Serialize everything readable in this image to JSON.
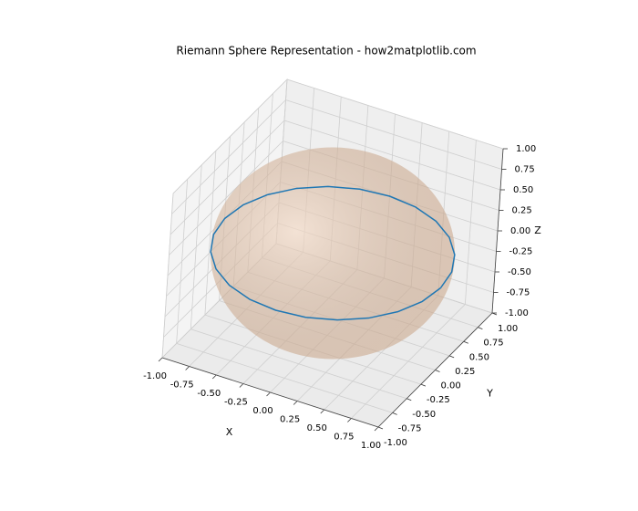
{
  "chart_data": {
    "type": "surface3d",
    "title": "Riemann Sphere Representation - how2matplotlib.com",
    "xlabel": "X",
    "ylabel": "Y",
    "zlabel": "Z",
    "xlim": [
      -1,
      1
    ],
    "ylim": [
      -1,
      1
    ],
    "zlim": [
      -1,
      1
    ],
    "xticks": [
      {
        "value": -1,
        "label": "-1.00"
      },
      {
        "value": -0.75,
        "label": "-0.75"
      },
      {
        "value": -0.5,
        "label": "-0.50"
      },
      {
        "value": -0.25,
        "label": "-0.25"
      },
      {
        "value": 0,
        "label": "0.00"
      },
      {
        "value": 0.25,
        "label": "0.25"
      },
      {
        "value": 0.5,
        "label": "0.50"
      },
      {
        "value": 0.75,
        "label": "0.75"
      },
      {
        "value": 1,
        "label": "1.00"
      }
    ],
    "yticks": [
      {
        "value": -1,
        "label": "-1.00"
      },
      {
        "value": -0.75,
        "label": "-0.75"
      },
      {
        "value": -0.5,
        "label": "-0.50"
      },
      {
        "value": -0.25,
        "label": "-0.25"
      },
      {
        "value": 0,
        "label": "0.00"
      },
      {
        "value": 0.25,
        "label": "0.25"
      },
      {
        "value": 0.5,
        "label": "0.50"
      },
      {
        "value": 0.75,
        "label": "0.75"
      },
      {
        "value": 1,
        "label": "1.00"
      }
    ],
    "zticks": [
      {
        "value": -1,
        "label": "-1.00"
      },
      {
        "value": -0.75,
        "label": "-0.75"
      },
      {
        "value": -0.5,
        "label": "-0.50"
      },
      {
        "value": -0.25,
        "label": "-0.25"
      },
      {
        "value": 0,
        "label": "0.00"
      },
      {
        "value": 0.25,
        "label": "0.25"
      },
      {
        "value": 0.5,
        "label": "0.50"
      },
      {
        "value": 0.75,
        "label": "0.75"
      },
      {
        "value": 1,
        "label": "1.00"
      }
    ],
    "grid": true,
    "surface": {
      "radius": 1,
      "color": "#eec4a4"
    },
    "curve": {
      "color": "#1f77b4",
      "x": [
        1,
        0.966,
        0.866,
        0.707,
        0.5,
        0.259,
        0,
        -0.259,
        -0.5,
        -0.707,
        -0.866,
        -0.966,
        -1,
        -0.966,
        -0.866,
        -0.707,
        -0.5,
        -0.259,
        0,
        0.259,
        0.5,
        0.707,
        0.866,
        0.966,
        1
      ],
      "y": [
        0,
        0.259,
        0.5,
        0.707,
        0.866,
        0.966,
        1,
        0.966,
        0.866,
        0.707,
        0.5,
        0.259,
        0,
        -0.259,
        -0.5,
        -0.707,
        -0.866,
        -0.966,
        -1,
        -0.966,
        -0.866,
        -0.707,
        -0.5,
        -0.259,
        0
      ],
      "z": [
        0,
        0,
        0,
        0,
        0,
        0,
        0,
        0,
        0,
        0,
        0,
        0,
        0,
        0,
        0,
        0,
        0,
        0,
        0,
        0,
        0,
        0,
        0,
        0,
        0
      ]
    }
  }
}
